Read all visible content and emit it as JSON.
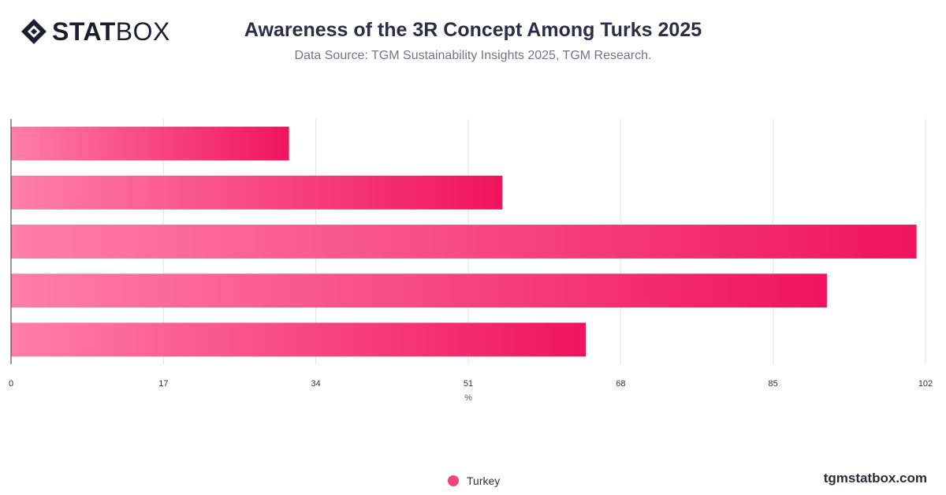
{
  "brand": {
    "stat": "STAT",
    "box": "BOX"
  },
  "title": "Awareness of the 3R Concept Among Turks 2025",
  "subtitle": "Data Source: TGM Sustainability Insights 2025, TGM Research.",
  "footer": "tgmstatbox.com",
  "colors": {
    "bar_start": "#ff7eaa",
    "bar_end": "#f0145e",
    "legend": "#f0457f"
  },
  "chart_data": {
    "type": "bar",
    "orientation": "horizontal",
    "categories": [
      "",
      "",
      "",
      "",
      ""
    ],
    "series": [
      {
        "name": "Turkey",
        "values": [
          31,
          54.8,
          101,
          91,
          64.1
        ]
      }
    ],
    "xlabel": "%",
    "xlim": [
      0,
      102
    ],
    "xticks": [
      "0",
      "17",
      "34",
      "51",
      "68",
      "85",
      "102"
    ],
    "grid": true,
    "legend": "bottom-center"
  }
}
